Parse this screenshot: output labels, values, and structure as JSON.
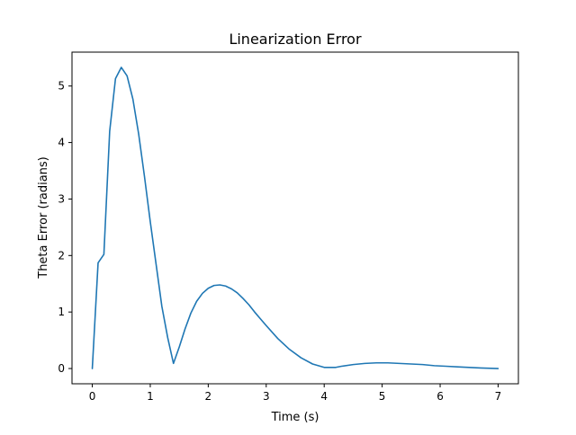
{
  "chart_data": {
    "type": "line",
    "title": "Linearization Error",
    "xlabel": "Time (s)",
    "ylabel": "Theta Error (radians)",
    "xlim": [
      -0.35,
      7.35
    ],
    "ylim": [
      -0.27,
      5.6
    ],
    "xticks": [
      0,
      1,
      2,
      3,
      4,
      5,
      6,
      7
    ],
    "yticks": [
      0,
      1,
      2,
      3,
      4,
      5
    ],
    "grid": false,
    "legend": "none",
    "series": [
      {
        "color": "#1f77b4",
        "x": [
          0,
          0.1,
          0.2,
          0.3,
          0.4,
          0.5,
          0.6,
          0.7,
          0.8,
          0.9,
          1.0,
          1.1,
          1.2,
          1.3,
          1.4,
          1.5,
          1.6,
          1.7,
          1.8,
          1.9,
          2.0,
          2.1,
          2.2,
          2.3,
          2.4,
          2.5,
          2.6,
          2.7,
          2.8,
          2.9,
          3.0,
          3.2,
          3.4,
          3.6,
          3.8,
          4.0,
          4.2,
          4.3,
          4.5,
          4.7,
          4.9,
          5.1,
          5.3,
          5.5,
          5.7,
          5.9,
          6.1,
          6.3,
          6.5,
          6.7,
          7.0
        ],
        "y": [
          0,
          1.87,
          2.02,
          4.2,
          5.13,
          5.33,
          5.18,
          4.77,
          4.15,
          3.4,
          2.6,
          1.85,
          1.1,
          0.55,
          0.09,
          0.38,
          0.7,
          0.98,
          1.19,
          1.33,
          1.42,
          1.47,
          1.48,
          1.46,
          1.41,
          1.34,
          1.24,
          1.13,
          1.0,
          0.88,
          0.76,
          0.53,
          0.34,
          0.19,
          0.08,
          0.02,
          0.02,
          0.04,
          0.07,
          0.09,
          0.1,
          0.1,
          0.09,
          0.08,
          0.07,
          0.05,
          0.04,
          0.03,
          0.02,
          0.01,
          0
        ]
      }
    ]
  }
}
